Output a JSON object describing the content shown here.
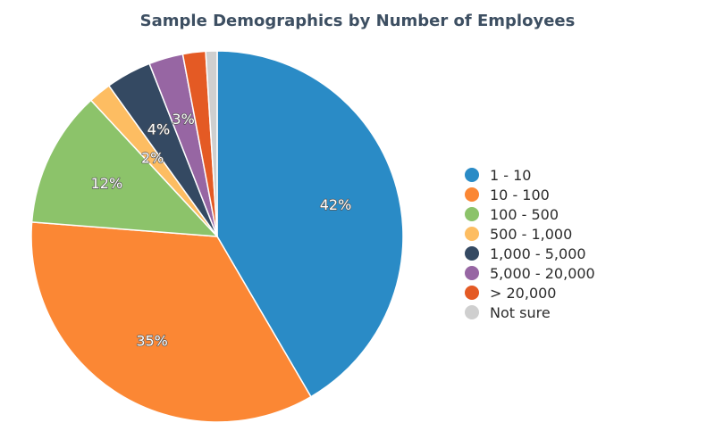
{
  "chart_data": {
    "type": "pie",
    "title": "Sample Demographics by Number of Employees",
    "legend_position": "right",
    "start_angle_deg": 0,
    "direction": "clockwise",
    "slices": [
      {
        "label": "1 - 10",
        "value": 42,
        "display": "42%",
        "color": "#2a8bc6"
      },
      {
        "label": "10 - 100",
        "value": 35,
        "display": "35%",
        "color": "#fb8734"
      },
      {
        "label": "100 - 500",
        "value": 12,
        "display": "12%",
        "color": "#8cc36a"
      },
      {
        "label": "500 - 1,000",
        "value": 2,
        "display": "2%",
        "color": "#fdbd62"
      },
      {
        "label": "1,000 - 5,000",
        "value": 4,
        "display": "4%",
        "color": "#344962"
      },
      {
        "label": "5,000 - 20,000",
        "value": 3,
        "display": "3%",
        "color": "#9766a3"
      },
      {
        "label": "> 20,000",
        "value": 2,
        "display": "",
        "color": "#e45a24"
      },
      {
        "label": "Not sure",
        "value": 1,
        "display": "",
        "color": "#cfcfcf"
      }
    ]
  }
}
